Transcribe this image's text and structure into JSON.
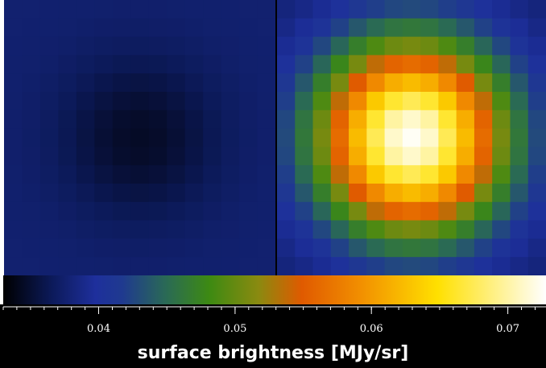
{
  "chart_data": {
    "type": "heatmap",
    "panels": [
      {
        "name": "left",
        "grid_cols": 15,
        "grid_rows": 15,
        "peak_value": 0.0345,
        "background_value": 0.0376,
        "profile": "centered_gaussian_dip"
      },
      {
        "name": "right",
        "grid_cols": 15,
        "grid_rows": 15,
        "peak_value": 0.0725,
        "background_value": 0.0375,
        "profile": "centered_gaussian"
      }
    ],
    "colorbar": {
      "label": "surface brightness [MJy/sr]",
      "range": [
        0.033,
        0.0728
      ],
      "ticks": [
        0.04,
        0.05,
        0.06,
        0.07
      ],
      "tick_labels": [
        "0.04",
        "0.05",
        "0.06",
        "0.07"
      ],
      "minor_tick_step": 0.001
    },
    "colormap_stops": [
      {
        "v": 0.0,
        "color": "#000000"
      },
      {
        "v": 0.09,
        "color": "#0c1a5a"
      },
      {
        "v": 0.17,
        "color": "#1e2f9c"
      },
      {
        "v": 0.22,
        "color": "#1f3a8f"
      },
      {
        "v": 0.3,
        "color": "#2a6a55"
      },
      {
        "v": 0.38,
        "color": "#3d8a12"
      },
      {
        "v": 0.47,
        "color": "#8a8a10"
      },
      {
        "v": 0.55,
        "color": "#e05a00"
      },
      {
        "v": 0.66,
        "color": "#f29000"
      },
      {
        "v": 0.8,
        "color": "#ffe000"
      },
      {
        "v": 1.0,
        "color": "#ffffff"
      }
    ]
  }
}
